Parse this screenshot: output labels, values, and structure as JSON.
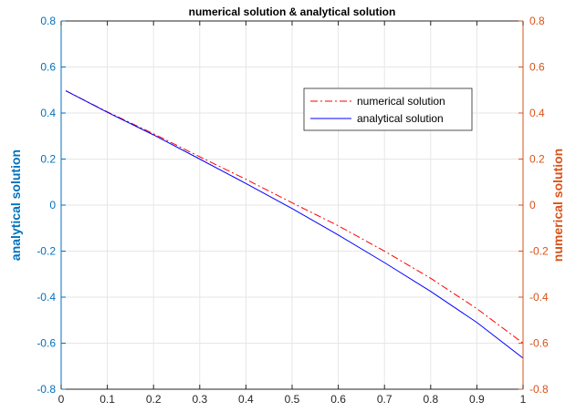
{
  "chart_data": {
    "type": "line",
    "title": "numerical solution & analytical solution",
    "xlabel": "",
    "ylabel_left": "analytical solution",
    "ylabel_right": "numerical solution",
    "xlim": [
      0,
      1
    ],
    "ylim_left": [
      -0.8,
      0.8
    ],
    "ylim_right": [
      -0.8,
      0.8
    ],
    "grid": true,
    "legend_position": "top-right",
    "x_ticks": [
      "0",
      "0.1",
      "0.2",
      "0.3",
      "0.4",
      "0.5",
      "0.6",
      "0.7",
      "0.8",
      "0.9",
      "1"
    ],
    "y_ticks_left": [
      "-0.8",
      "-0.6",
      "-0.4",
      "-0.2",
      "0",
      "0.2",
      "0.4",
      "0.6",
      "0.8"
    ],
    "y_ticks_right": [
      "-0.8",
      "-0.6",
      "-0.4",
      "-0.2",
      "0",
      "0.2",
      "0.4",
      "0.6",
      "0.8"
    ],
    "colors": {
      "left_axis": "#0072BD",
      "right_axis": "#D95319",
      "numerical": "#FF0000",
      "analytical": "#0000FF",
      "grid": "#E6E6E6"
    },
    "series": [
      {
        "name": "numerical solution",
        "style": "dash-dot",
        "color": "#FF0000",
        "x": [
          0.01,
          0.1,
          0.2,
          0.3,
          0.4,
          0.5,
          0.6,
          0.7,
          0.8,
          0.9,
          1.0
        ],
        "y": [
          0.497,
          0.405,
          0.31,
          0.21,
          0.112,
          0.01,
          -0.09,
          -0.2,
          -0.318,
          -0.45,
          -0.6
        ]
      },
      {
        "name": "analytical solution",
        "style": "solid",
        "color": "#0000FF",
        "x": [
          0.01,
          0.1,
          0.2,
          0.3,
          0.4,
          0.5,
          0.6,
          0.7,
          0.8,
          0.9,
          1.0
        ],
        "y": [
          0.497,
          0.403,
          0.305,
          0.2,
          0.094,
          -0.015,
          -0.13,
          -0.25,
          -0.375,
          -0.51,
          -0.665
        ]
      }
    ]
  }
}
